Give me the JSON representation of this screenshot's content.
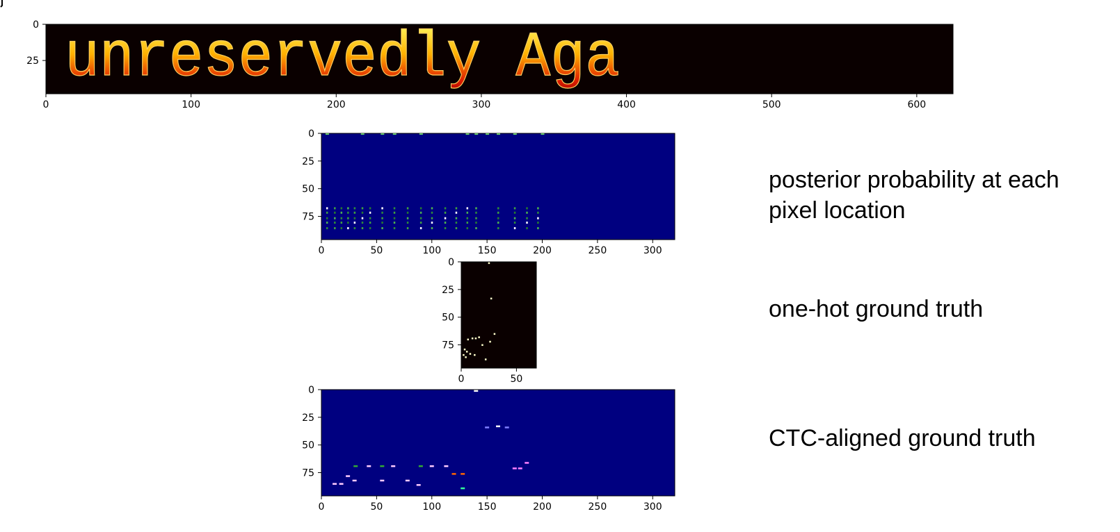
{
  "annotations": {
    "posterior": "posterior probability at each pixel location",
    "one_hot": "one-hot ground truth",
    "ctc": "CTC-aligned ground truth"
  },
  "chart_data": [
    {
      "type": "heatmap",
      "id": "input-image",
      "colormap": "hot",
      "background_color": "#0a0000",
      "text_in_image": "unreservedly Aga",
      "xlim": [
        0,
        625
      ],
      "ylim": [
        48,
        0
      ],
      "xticks": [
        0,
        100,
        200,
        300,
        400,
        500,
        600
      ],
      "yticks": [
        0,
        25
      ]
    },
    {
      "type": "heatmap",
      "id": "posterior",
      "colormap": "jet",
      "background_color": "#000080",
      "xlim": [
        0,
        320
      ],
      "ylim": [
        96,
        0
      ],
      "xticks": [
        0,
        50,
        100,
        150,
        200,
        250,
        300
      ],
      "yticks": [
        0,
        25,
        50,
        75
      ],
      "columns_with_activation": [
        5,
        12,
        18,
        24,
        30,
        37,
        44,
        55,
        66,
        78,
        90,
        100,
        112,
        122,
        132,
        140,
        160,
        175,
        186,
        196
      ],
      "activation_rows": [
        68,
        72,
        77,
        81,
        86
      ],
      "top_row_activation_columns": [
        5,
        37,
        55,
        66,
        90,
        132,
        140,
        150,
        160,
        175,
        200
      ]
    },
    {
      "type": "heatmap",
      "id": "one-hot",
      "colormap": "hot",
      "background_color": "#0a0000",
      "xlim": [
        0,
        68
      ],
      "ylim": [
        96,
        0
      ],
      "xticks": [
        0,
        50
      ],
      "yticks": [
        0,
        25,
        50,
        75
      ],
      "points": [
        {
          "x": 25,
          "y": 1
        },
        {
          "x": 27,
          "y": 33
        },
        {
          "x": 30,
          "y": 65
        },
        {
          "x": 16,
          "y": 68
        },
        {
          "x": 10,
          "y": 69
        },
        {
          "x": 13,
          "y": 69
        },
        {
          "x": 6,
          "y": 70
        },
        {
          "x": 26,
          "y": 72
        },
        {
          "x": 19,
          "y": 75
        },
        {
          "x": 3,
          "y": 79
        },
        {
          "x": 2,
          "y": 84
        },
        {
          "x": 5,
          "y": 81
        },
        {
          "x": 8,
          "y": 83
        },
        {
          "x": 12,
          "y": 84
        },
        {
          "x": 4,
          "y": 86
        },
        {
          "x": 22,
          "y": 88
        }
      ]
    },
    {
      "type": "heatmap",
      "id": "ctc-aligned",
      "colormap": "jet",
      "background_color": "#000080",
      "xlim": [
        0,
        320
      ],
      "ylim": [
        96,
        0
      ],
      "xticks": [
        0,
        50,
        100,
        150,
        200,
        250,
        300
      ],
      "yticks": [
        0,
        25,
        50,
        75
      ],
      "points": [
        {
          "x": 140,
          "y": 1,
          "c": "#ffffff"
        },
        {
          "x": 150,
          "y": 34,
          "c": "#8080ff"
        },
        {
          "x": 160,
          "y": 33,
          "c": "#ffffff"
        },
        {
          "x": 168,
          "y": 34,
          "c": "#8080ff"
        },
        {
          "x": 186,
          "y": 66,
          "c": "#ff80ff"
        },
        {
          "x": 31,
          "y": 69,
          "c": "#33aa33"
        },
        {
          "x": 43,
          "y": 69,
          "c": "#ffccff"
        },
        {
          "x": 55,
          "y": 69,
          "c": "#33aa33"
        },
        {
          "x": 65,
          "y": 69,
          "c": "#ffccff"
        },
        {
          "x": 90,
          "y": 69,
          "c": "#33aa33"
        },
        {
          "x": 100,
          "y": 69,
          "c": "#ffccff"
        },
        {
          "x": 113,
          "y": 69,
          "c": "#ffccff"
        },
        {
          "x": 175,
          "y": 71,
          "c": "#ff80ff"
        },
        {
          "x": 180,
          "y": 71,
          "c": "#ff80ff"
        },
        {
          "x": 120,
          "y": 76,
          "c": "#ff6600"
        },
        {
          "x": 128,
          "y": 76,
          "c": "#ff6600"
        },
        {
          "x": 24,
          "y": 78,
          "c": "#ffccff"
        },
        {
          "x": 30,
          "y": 82,
          "c": "#ffccff"
        },
        {
          "x": 55,
          "y": 82,
          "c": "#ffccff"
        },
        {
          "x": 78,
          "y": 82,
          "c": "#ffccff"
        },
        {
          "x": 12,
          "y": 85,
          "c": "#ffccff"
        },
        {
          "x": 18,
          "y": 85,
          "c": "#ffccff"
        },
        {
          "x": 88,
          "y": 86,
          "c": "#ffccff"
        },
        {
          "x": 128,
          "y": 89,
          "c": "#33ff99"
        }
      ]
    }
  ]
}
